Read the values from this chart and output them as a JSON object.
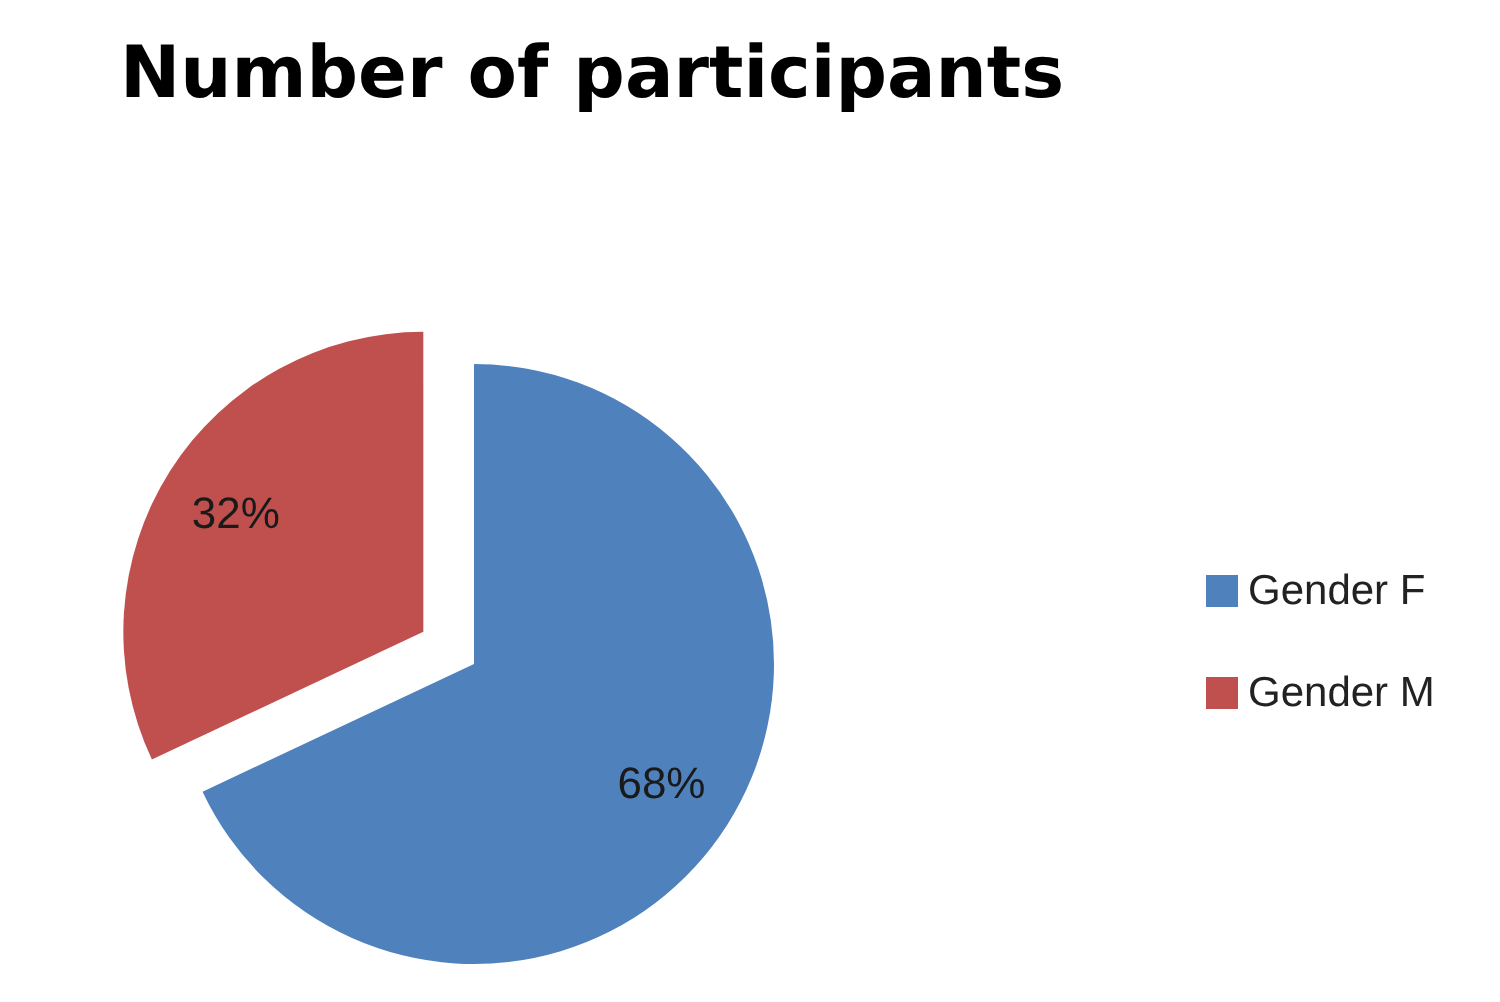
{
  "chart_data": {
    "type": "pie",
    "title": "Number of participants",
    "categories": [
      "Gender F",
      "Gender M"
    ],
    "values": [
      68,
      32
    ],
    "colors": [
      "#4f81bd",
      "#c0504d"
    ],
    "value_labels": [
      "68%",
      "32%"
    ],
    "legend": "right"
  }
}
